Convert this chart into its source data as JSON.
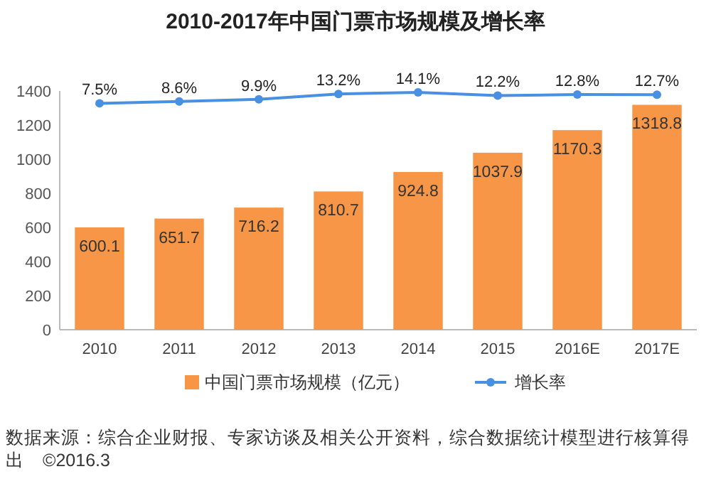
{
  "chart_data": {
    "type": "bar",
    "title": "2010-2017年中国门票市场规模及增长率",
    "categories": [
      "2010",
      "2011",
      "2012",
      "2013",
      "2014",
      "2015",
      "2016E",
      "2017E"
    ],
    "series": [
      {
        "name": "中国门票市场规模（亿元）",
        "color": "#f79646",
        "values": [
          600.1,
          651.7,
          716.2,
          810.7,
          924.8,
          1037.9,
          1170.3,
          1318.8
        ]
      },
      {
        "name": "增长率",
        "type": "line",
        "axis": "y2",
        "color": "#4a90e2",
        "marker": "circle",
        "values": [
          7.5,
          8.6,
          9.9,
          13.2,
          14.1,
          12.2,
          12.8,
          12.7
        ],
        "value_labels": [
          "7.5%",
          "8.6%",
          "9.9%",
          "13.2%",
          "14.1%",
          "12.2%",
          "12.8%",
          "12.7%"
        ]
      }
    ],
    "ylim": [
      0,
      1400
    ],
    "y2lim": [
      -130,
      15
    ],
    "yticks": [
      0,
      200,
      400,
      600,
      800,
      1000,
      1200,
      1400
    ],
    "data_labels": true,
    "legend": "bottom",
    "grid": false,
    "annotations": [
      "数据来源：综合企业财报、专家访谈及相关公开资料，综合数据统计模型进行核算得出　©2016.3"
    ]
  }
}
